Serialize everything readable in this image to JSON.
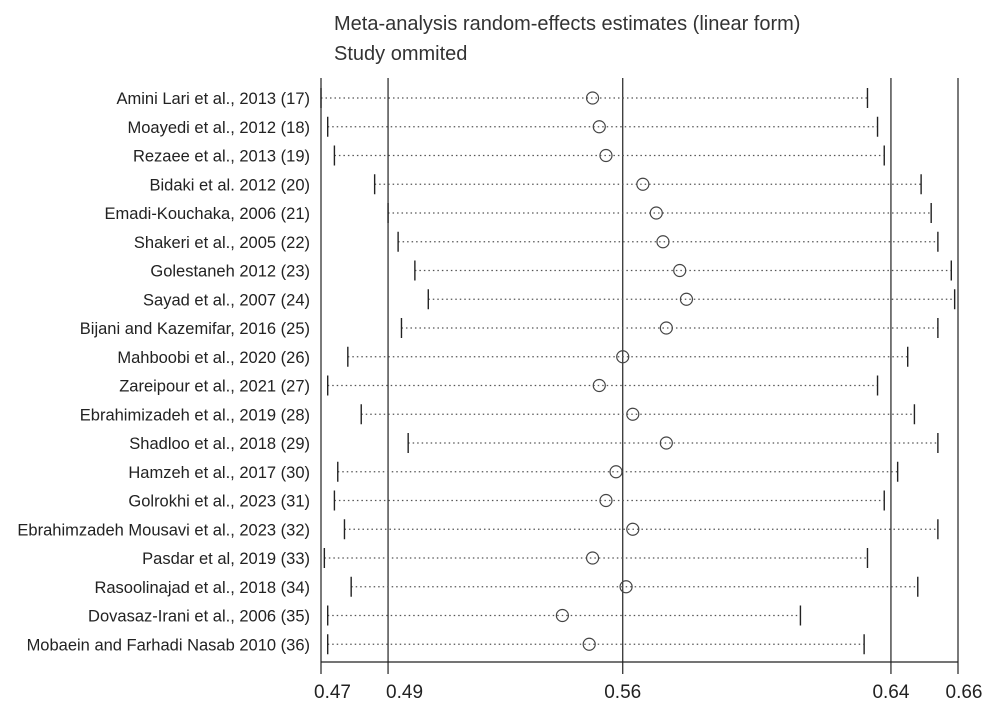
{
  "header": {
    "title": "Meta-analysis random-effects estimates (linear form)",
    "subtitle": "Study ommited"
  },
  "chart_data": {
    "type": "scatter",
    "title": "Meta-analysis random-effects estimates (linear form)",
    "subtitle": "Study ommited",
    "xlim": [
      0.47,
      0.66
    ],
    "x_ticks": [
      0.47,
      0.49,
      0.56,
      0.64,
      0.66
    ],
    "x_tick_labels": [
      "0.47",
      "0.49",
      "0.56",
      "0.64",
      "0.66"
    ],
    "reference_lines": [
      0.49,
      0.56,
      0.64
    ],
    "grid": false,
    "studies": [
      {
        "label": "Amini Lari et al., 2013 (17)",
        "estimate": 0.551,
        "lower": 0.47,
        "upper": 0.633
      },
      {
        "label": "Moayedi et al., 2012 (18)",
        "estimate": 0.553,
        "lower": 0.472,
        "upper": 0.636
      },
      {
        "label": "Rezaee et al., 2013 (19)",
        "estimate": 0.555,
        "lower": 0.474,
        "upper": 0.638
      },
      {
        "label": "Bidaki et al. 2012 (20)",
        "estimate": 0.566,
        "lower": 0.486,
        "upper": 0.649
      },
      {
        "label": "Emadi-Kouchaka, 2006 (21)",
        "estimate": 0.57,
        "lower": 0.49,
        "upper": 0.652
      },
      {
        "label": "Shakeri et al., 2005 (22)",
        "estimate": 0.572,
        "lower": 0.493,
        "upper": 0.654
      },
      {
        "label": "Golestaneh 2012 (23)",
        "estimate": 0.577,
        "lower": 0.498,
        "upper": 0.658
      },
      {
        "label": "Sayad et al., 2007 (24)",
        "estimate": 0.579,
        "lower": 0.502,
        "upper": 0.659
      },
      {
        "label": "Bijani and Kazemifar, 2016 (25)",
        "estimate": 0.573,
        "lower": 0.494,
        "upper": 0.654
      },
      {
        "label": "Mahboobi et al., 2020 (26)",
        "estimate": 0.56,
        "lower": 0.478,
        "upper": 0.645
      },
      {
        "label": "Zareipour et al., 2021 (27)",
        "estimate": 0.553,
        "lower": 0.472,
        "upper": 0.636
      },
      {
        "label": "Ebrahimizadeh et al., 2019 (28)",
        "estimate": 0.563,
        "lower": 0.482,
        "upper": 0.647
      },
      {
        "label": "Shadloo et al., 2018 (29)",
        "estimate": 0.573,
        "lower": 0.496,
        "upper": 0.654
      },
      {
        "label": "Hamzeh et al., 2017 (30)",
        "estimate": 0.558,
        "lower": 0.475,
        "upper": 0.642
      },
      {
        "label": "Golrokhi et al., 2023 (31)",
        "estimate": 0.555,
        "lower": 0.474,
        "upper": 0.638
      },
      {
        "label": "Ebrahimzadeh Mousavi et al., 2023 (32)",
        "estimate": 0.563,
        "lower": 0.477,
        "upper": 0.654
      },
      {
        "label": "Pasdar et al, 2019 (33)",
        "estimate": 0.551,
        "lower": 0.471,
        "upper": 0.633
      },
      {
        "label": "Rasoolinajad et al., 2018 (34)",
        "estimate": 0.561,
        "lower": 0.479,
        "upper": 0.648
      },
      {
        "label": "Dovasaz-Irani et al., 2006 (35)",
        "estimate": 0.542,
        "lower": 0.472,
        "upper": 0.613
      },
      {
        "label": "Mobaein and Farhadi Nasab 2010 (36)",
        "estimate": 0.55,
        "lower": 0.472,
        "upper": 0.632
      }
    ]
  }
}
